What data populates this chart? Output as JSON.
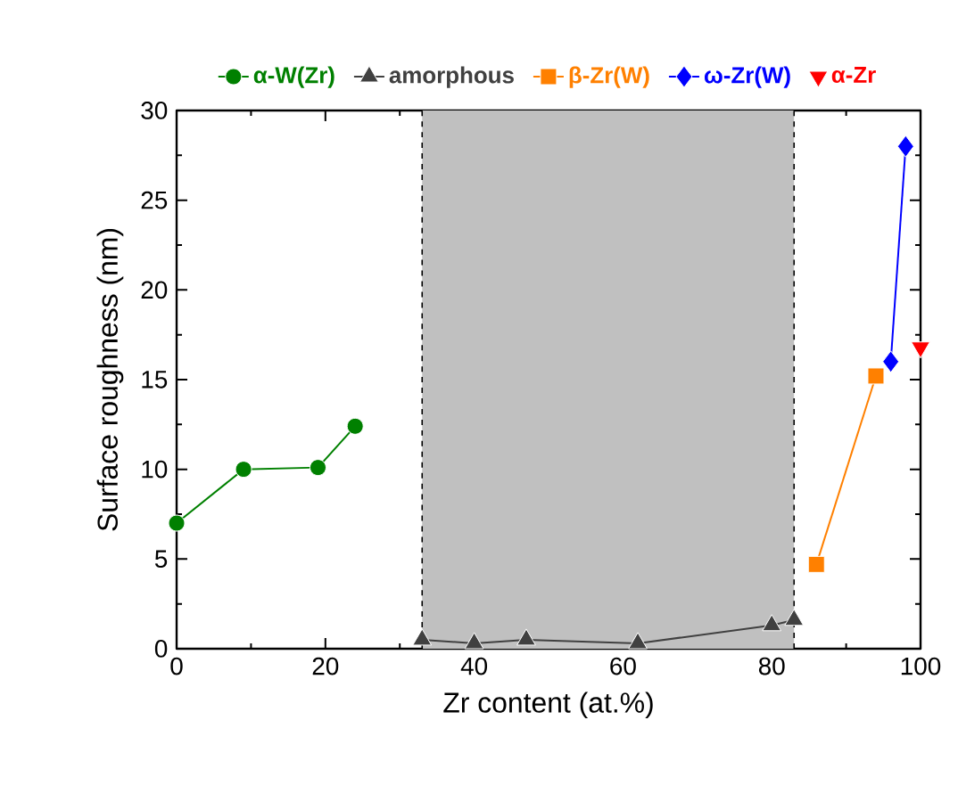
{
  "chart_data": {
    "type": "line",
    "xlabel": "Zr content (at.%)",
    "ylabel": "Surface roughness (nm)",
    "series": [
      {
        "name": "α-W(Zr)",
        "color": "#008000",
        "marker": "circle",
        "x": [
          0,
          9,
          19,
          24
        ],
        "values": [
          7.0,
          10.0,
          10.1,
          12.4
        ]
      },
      {
        "name": "amorphous",
        "color": "#404040",
        "marker": "triangle",
        "x": [
          33,
          40,
          47,
          62,
          80,
          83
        ],
        "values": [
          0.5,
          0.3,
          0.5,
          0.3,
          1.3,
          1.6
        ]
      },
      {
        "name": "β-Zr(W)",
        "color": "#ff8000",
        "marker": "square",
        "x": [
          86,
          94
        ],
        "values": [
          4.7,
          15.2
        ]
      },
      {
        "name": "ω-Zr(W)",
        "color": "#0000ff",
        "marker": "diamond",
        "x": [
          96,
          98
        ],
        "values": [
          16,
          28
        ]
      },
      {
        "name": "α-Zr",
        "color": "#ff0000",
        "type": "scatter",
        "marker": "triangle down",
        "x": [
          100
        ],
        "values": [
          16.8
        ]
      }
    ],
    "bands": [
      {
        "axis": "x",
        "from": 33,
        "to": 83,
        "color": "#c0c0c0"
      }
    ],
    "ref_lines": [
      {
        "axis": "x",
        "value": 33,
        "color": "#000000",
        "line_style": "dashed"
      },
      {
        "axis": "x",
        "value": 83,
        "color": "#000000",
        "line_style": "dashed"
      }
    ],
    "xlim": [
      0,
      100
    ],
    "ylim": [
      0,
      30
    ],
    "xticks": [
      0,
      20,
      40,
      60,
      80,
      100
    ],
    "yticks": [
      0,
      5,
      10,
      15,
      20,
      25,
      30
    ],
    "legend": "top",
    "grid": false
  }
}
